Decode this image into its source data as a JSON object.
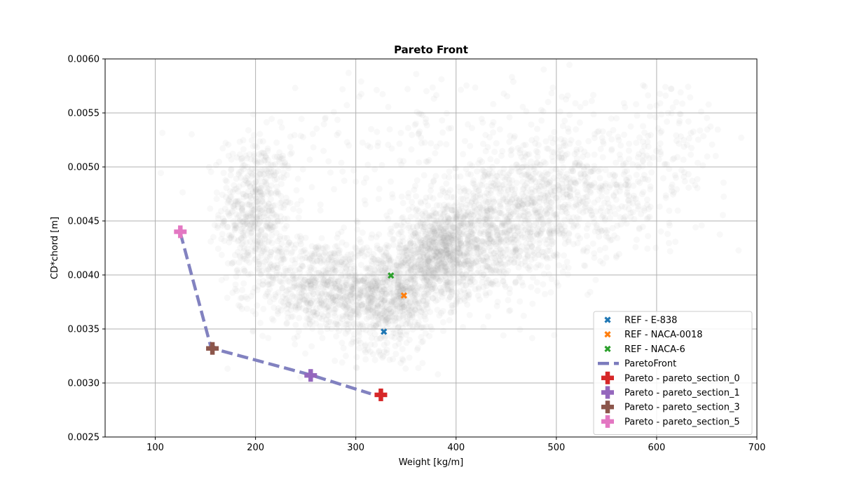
{
  "chart_data": {
    "type": "scatter",
    "title": "Pareto Front",
    "xlabel": "Weight [kg/m]",
    "ylabel": "CD*chord [m]",
    "xlim": [
      50,
      700
    ],
    "ylim": [
      0.0025,
      0.006
    ],
    "xticks": [
      100,
      200,
      300,
      400,
      500,
      600,
      700
    ],
    "yticks": [
      0.0025,
      0.003,
      0.0035,
      0.004,
      0.0045,
      0.005,
      0.0055,
      0.006
    ],
    "xtick_labels": [
      "100",
      "200",
      "300",
      "400",
      "500",
      "600",
      "700"
    ],
    "ytick_labels": [
      "0.0025",
      "0.0030",
      "0.0035",
      "0.0040",
      "0.0045",
      "0.0050",
      "0.0055",
      "0.0060"
    ],
    "grid": true,
    "legend_position": "lower-right",
    "background_cloud": {
      "color": "#a0a0a0",
      "clusters": [
        {
          "cx": 200,
          "cy": 0.0046,
          "sx": 18,
          "sy": 0.00035,
          "n": 550
        },
        {
          "cx": 260,
          "cy": 0.0039,
          "sx": 30,
          "sy": 0.00022,
          "n": 600
        },
        {
          "cx": 330,
          "cy": 0.0038,
          "sx": 25,
          "sy": 0.00025,
          "n": 800
        },
        {
          "cx": 385,
          "cy": 0.0042,
          "sx": 25,
          "sy": 0.00022,
          "n": 900
        },
        {
          "cx": 440,
          "cy": 0.0044,
          "sx": 35,
          "sy": 0.00028,
          "n": 700
        },
        {
          "cx": 510,
          "cy": 0.0047,
          "sx": 40,
          "sy": 0.0003,
          "n": 550
        },
        {
          "cx": 600,
          "cy": 0.0051,
          "sx": 35,
          "sy": 0.00035,
          "n": 180
        },
        {
          "cx": 400,
          "cy": 0.0052,
          "sx": 100,
          "sy": 0.00035,
          "n": 250
        }
      ]
    },
    "series": [
      {
        "name": "REF - E-838",
        "kind": "ref",
        "color": "#1f77b4",
        "x": [
          328
        ],
        "y": [
          0.003475
        ]
      },
      {
        "name": "REF - NACA-0018",
        "kind": "ref",
        "color": "#ff7f0e",
        "x": [
          348
        ],
        "y": [
          0.00381
        ]
      },
      {
        "name": "REF - NACA-6",
        "kind": "ref",
        "color": "#2ca02c",
        "x": [
          335
        ],
        "y": [
          0.003995
        ]
      },
      {
        "name": "ParetoFront",
        "kind": "line",
        "color": "#7b7bbd",
        "x": [
          125,
          155,
          165,
          255,
          315
        ],
        "y": [
          0.00439,
          0.00335,
          0.0033,
          0.003075,
          0.0029
        ]
      },
      {
        "name": "Pareto - pareto_section_0",
        "kind": "pareto",
        "color": "#d62728",
        "x": [
          325
        ],
        "y": [
          0.00289
        ]
      },
      {
        "name": "Pareto - pareto_section_1",
        "kind": "pareto",
        "color": "#9467bd",
        "x": [
          255
        ],
        "y": [
          0.00307
        ]
      },
      {
        "name": "Pareto - pareto_section_3",
        "kind": "pareto",
        "color": "#8c564b",
        "x": [
          157
        ],
        "y": [
          0.00332
        ]
      },
      {
        "name": "Pareto - pareto_section_5",
        "kind": "pareto",
        "color": "#e377c2",
        "x": [
          125
        ],
        "y": [
          0.0044
        ]
      }
    ]
  }
}
